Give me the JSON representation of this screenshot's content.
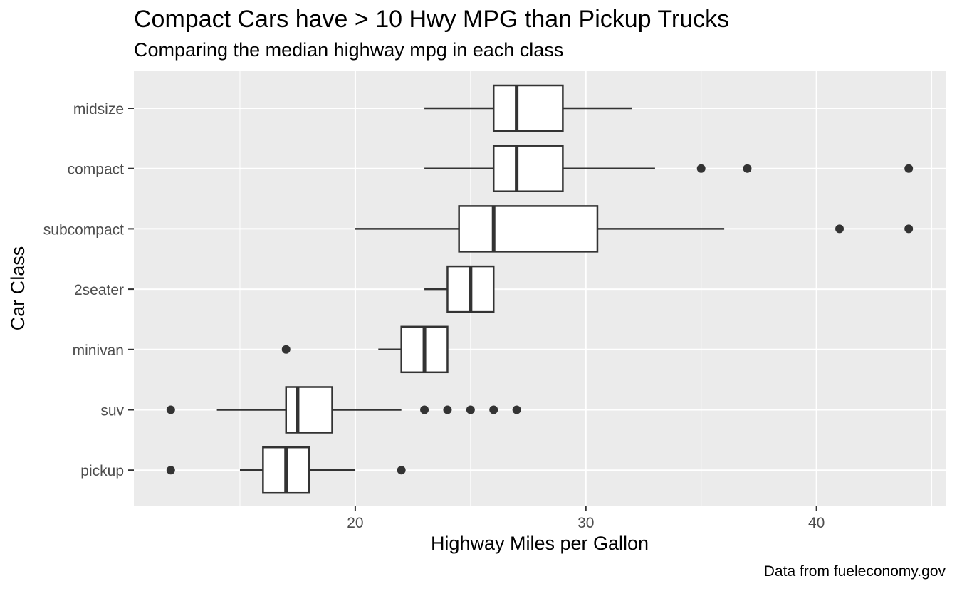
{
  "chart_data": {
    "type": "boxplot",
    "orientation": "horizontal",
    "title": "Compact Cars have > 10 Hwy MPG than Pickup Trucks",
    "subtitle": "Comparing the median highway mpg in each class",
    "xlabel": "Highway Miles per Gallon",
    "ylabel": "Car Class",
    "caption": "Data from fueleconomy.gov",
    "xlim": [
      10.4,
      45.6
    ],
    "xticks": [
      20,
      30,
      40
    ],
    "xtick_labels": [
      "20",
      "30",
      "40"
    ],
    "minor_xticks": [
      15,
      25,
      35,
      45
    ],
    "grid": true,
    "legend": "none",
    "colors": {
      "panel": "#ebebeb",
      "grid": "#ffffff",
      "box_fill": "#ffffff",
      "box_line": "#333333",
      "outlier": "#333333",
      "tick": "#333333"
    },
    "categories": [
      "midsize",
      "compact",
      "subcompact",
      "2seater",
      "minivan",
      "suv",
      "pickup"
    ],
    "boxes": [
      {
        "category": "midsize",
        "whisker_low": 23,
        "q1": 26,
        "median": 27,
        "q3": 29,
        "whisker_high": 32,
        "outliers": []
      },
      {
        "category": "compact",
        "whisker_low": 23,
        "q1": 26,
        "median": 27,
        "q3": 29,
        "whisker_high": 33,
        "outliers": [
          35,
          37,
          44
        ]
      },
      {
        "category": "subcompact",
        "whisker_low": 20,
        "q1": 24.5,
        "median": 26,
        "q3": 30.5,
        "whisker_high": 36,
        "outliers": [
          41,
          44
        ]
      },
      {
        "category": "2seater",
        "whisker_low": 23,
        "q1": 24,
        "median": 25,
        "q3": 26,
        "whisker_high": 26,
        "outliers": []
      },
      {
        "category": "minivan",
        "whisker_low": 21,
        "q1": 22,
        "median": 23,
        "q3": 24,
        "whisker_high": 24,
        "outliers": [
          17
        ]
      },
      {
        "category": "suv",
        "whisker_low": 14,
        "q1": 17,
        "median": 17.5,
        "q3": 19,
        "whisker_high": 22,
        "outliers": [
          12,
          23,
          24,
          25,
          26,
          27
        ]
      },
      {
        "category": "pickup",
        "whisker_low": 15,
        "q1": 16,
        "median": 17,
        "q3": 18,
        "whisker_high": 20,
        "outliers": [
          12,
          22
        ]
      }
    ]
  }
}
